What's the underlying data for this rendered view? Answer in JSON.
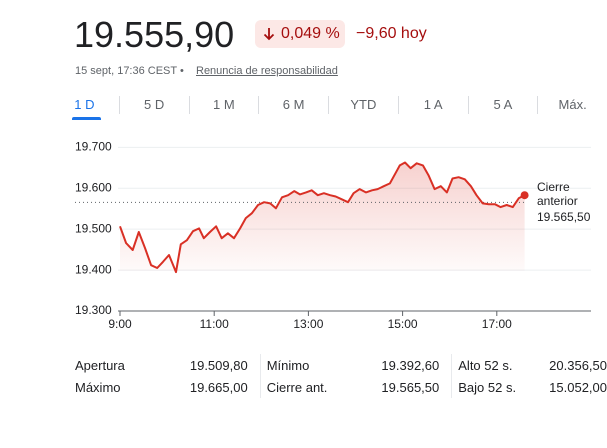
{
  "header": {
    "price": "19.555,90",
    "change_percent": "0,049 %",
    "change_today": "−9,60 hoy",
    "timestamp": "15 sept, 17:36 CEST •",
    "disclaimer": "Renuncia de responsabilidad"
  },
  "tabs": [
    "1 D",
    "5 D",
    "1 M",
    "6 M",
    "YTD",
    "1 A",
    "5 A",
    "Máx."
  ],
  "chart_data": {
    "type": "line",
    "color": "#d93025",
    "grid": true,
    "x": [
      9.0,
      9.13,
      9.27,
      9.4,
      9.53,
      9.66,
      9.79,
      9.91,
      10.04,
      10.19,
      10.29,
      10.42,
      10.55,
      10.68,
      10.78,
      10.91,
      11.04,
      11.16,
      11.29,
      11.42,
      11.55,
      11.67,
      11.8,
      11.93,
      12.06,
      12.19,
      12.31,
      12.44,
      12.57,
      12.7,
      12.82,
      12.95,
      13.07,
      13.2,
      13.33,
      13.46,
      13.58,
      13.71,
      13.84,
      13.96,
      14.09,
      14.22,
      14.35,
      14.47,
      14.6,
      14.73,
      14.86,
      14.94,
      15.05,
      15.17,
      15.3,
      15.43,
      15.55,
      15.68,
      15.81,
      15.94,
      16.06,
      16.19,
      16.32,
      16.45,
      16.57,
      16.7,
      16.83,
      16.96,
      17.08,
      17.21,
      17.34,
      17.47,
      17.59
    ],
    "values": [
      19507,
      19466,
      19449,
      19493,
      19454,
      19412,
      19405,
      19420,
      19437,
      19395,
      19463,
      19473,
      19495,
      19502,
      19478,
      19493,
      19507,
      19478,
      19490,
      19478,
      19502,
      19527,
      19539,
      19559,
      19566,
      19563,
      19551,
      19578,
      19583,
      19593,
      19585,
      19590,
      19595,
      19583,
      19588,
      19583,
      19580,
      19573,
      19566,
      19588,
      19598,
      19590,
      19595,
      19598,
      19605,
      19612,
      19639,
      19656,
      19663,
      19649,
      19661,
      19656,
      19632,
      19598,
      19605,
      19590,
      19624,
      19627,
      19622,
      19605,
      19583,
      19563,
      19561,
      19561,
      19554,
      19559,
      19554,
      19576,
      19583
    ],
    "xlim": [
      9,
      19
    ],
    "xticks": [
      {
        "value": 9,
        "label": "9:00"
      },
      {
        "value": 11,
        "label": "11:00"
      },
      {
        "value": 13,
        "label": "13:00"
      },
      {
        "value": 15,
        "label": "15:00"
      },
      {
        "value": 17,
        "label": "17:00"
      }
    ],
    "ylim": [
      19300,
      19740
    ],
    "yticks": [
      {
        "value": 19300,
        "label": "19.300"
      },
      {
        "value": 19400,
        "label": "19.400"
      },
      {
        "value": 19500,
        "label": "19.500"
      },
      {
        "value": 19600,
        "label": "19.600"
      },
      {
        "value": 19700,
        "label": "19.700"
      }
    ],
    "previous_close": {
      "value": 19565.5,
      "label": "19.565,50",
      "text": "Cierre anterior"
    }
  },
  "stats": [
    [
      "Apertura",
      "19.509,80",
      "Mínimo",
      "19.392,60",
      "Alto 52 s.",
      "20.356,50"
    ],
    [
      "Máximo",
      "19.665,00",
      "Cierre ant.",
      "19.565,50",
      "Bajo 52 s.",
      "15.052,00"
    ]
  ]
}
